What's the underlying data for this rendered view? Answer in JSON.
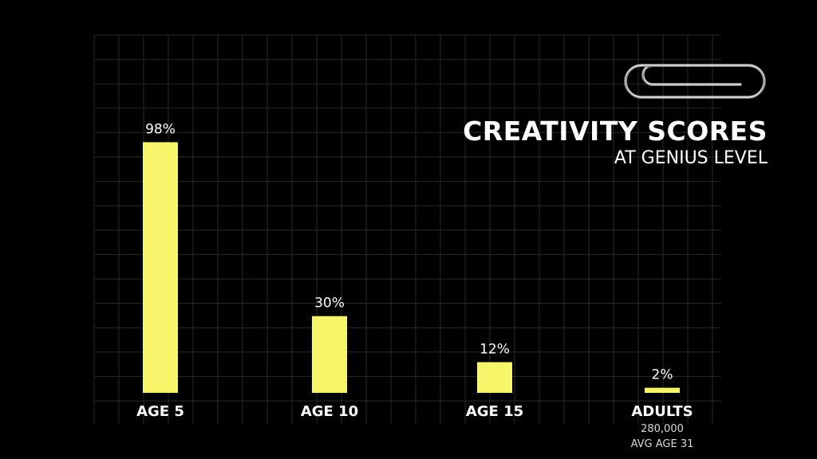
{
  "title": "CREATIVITY SCORES",
  "subtitle": "AT GENIUS LEVEL",
  "colors": {
    "background": "#000000",
    "bar": "#f7f56a",
    "grid": "#2a2a2a",
    "text": "#ffffff"
  },
  "icon": "paperclip-icon",
  "chart_data": {
    "type": "bar",
    "categories": [
      "AGE 5",
      "AGE 10",
      "AGE 15",
      "ADULTS"
    ],
    "values": [
      98,
      30,
      12,
      2
    ],
    "value_labels": [
      "98%",
      "30%",
      "12%",
      "2%"
    ],
    "sublabels": [
      [],
      [],
      [],
      [
        "280,000",
        "AVG AGE 31"
      ]
    ],
    "title": "CREATIVITY SCORES",
    "subtitle": "AT GENIUS LEVEL",
    "xlabel": "",
    "ylabel": "",
    "ylim": [
      0,
      100
    ],
    "grid": true,
    "legend": "none"
  }
}
